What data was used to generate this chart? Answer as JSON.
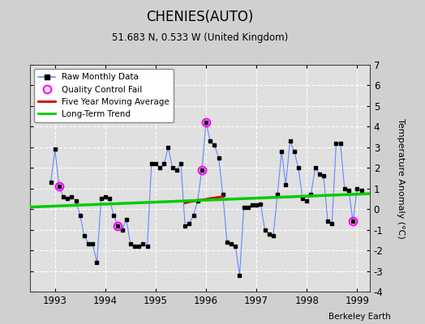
{
  "title": "CHENIES(AUTO)",
  "subtitle": "51.683 N, 0.533 W (United Kingdom)",
  "ylabel": "Temperature Anomaly (°C)",
  "credit": "Berkeley Earth",
  "ylim": [
    -4,
    7
  ],
  "xlim": [
    1992.5,
    1999.25
  ],
  "yticks": [
    -4,
    -3,
    -2,
    -1,
    0,
    1,
    2,
    3,
    4,
    5,
    6,
    7
  ],
  "xticks": [
    1993,
    1994,
    1995,
    1996,
    1997,
    1998,
    1999
  ],
  "bg_color": "#d0d0d0",
  "plot_bg_color": "#e0e0e0",
  "raw_line_color": "#6688ff",
  "raw_marker_color": "#000000",
  "qc_fail_color": "#ff00ff",
  "moving_avg_color": "#cc0000",
  "trend_color": "#00cc00",
  "raw_monthly_x": [
    1992.917,
    1993.0,
    1993.083,
    1993.167,
    1993.25,
    1993.333,
    1993.417,
    1993.5,
    1993.583,
    1993.667,
    1993.75,
    1993.833,
    1993.917,
    1994.0,
    1994.083,
    1994.167,
    1994.25,
    1994.333,
    1994.417,
    1994.5,
    1994.583,
    1994.667,
    1994.75,
    1994.833,
    1994.917,
    1995.0,
    1995.083,
    1995.167,
    1995.25,
    1995.333,
    1995.417,
    1995.5,
    1995.583,
    1995.667,
    1995.75,
    1995.833,
    1995.917,
    1996.0,
    1996.083,
    1996.167,
    1996.25,
    1996.333,
    1996.417,
    1996.5,
    1996.583,
    1996.667,
    1996.75,
    1996.833,
    1996.917,
    1997.0,
    1997.083,
    1997.167,
    1997.25,
    1997.333,
    1997.417,
    1997.5,
    1997.583,
    1997.667,
    1997.75,
    1997.833,
    1997.917,
    1998.0,
    1998.083,
    1998.167,
    1998.25,
    1998.333,
    1998.417,
    1998.5,
    1998.583,
    1998.667,
    1998.75,
    1998.833,
    1998.917,
    1999.0,
    1999.083
  ],
  "raw_monthly_y": [
    1.3,
    2.9,
    1.1,
    0.6,
    0.5,
    0.6,
    0.4,
    -0.3,
    -1.3,
    -1.7,
    -1.7,
    -2.6,
    0.5,
    0.6,
    0.5,
    -0.3,
    -0.8,
    -1.0,
    -0.5,
    -1.7,
    -1.8,
    -1.8,
    -1.7,
    -1.8,
    2.2,
    2.2,
    2.0,
    2.2,
    3.0,
    2.0,
    1.9,
    2.2,
    -0.8,
    -0.7,
    -0.3,
    0.4,
    1.9,
    4.2,
    3.3,
    3.1,
    2.5,
    0.7,
    -1.6,
    -1.7,
    -1.8,
    -3.2,
    0.1,
    0.1,
    0.2,
    0.2,
    0.25,
    -1.0,
    -1.2,
    -1.3,
    0.7,
    2.8,
    1.2,
    3.3,
    2.8,
    2.0,
    0.5,
    0.4,
    0.7,
    2.0,
    1.7,
    1.6,
    -0.6,
    -0.7,
    3.2,
    3.2,
    1.0,
    0.9,
    -0.6,
    1.0,
    0.9
  ],
  "qc_fail_x": [
    1993.083,
    1994.25,
    1995.917,
    1996.0,
    1998.917
  ],
  "qc_fail_y": [
    1.1,
    -0.8,
    1.9,
    4.2,
    -0.6
  ],
  "moving_avg_x": [
    1995.583,
    1995.667,
    1995.75,
    1995.833,
    1995.917,
    1996.0,
    1996.083,
    1996.167,
    1996.25,
    1996.333
  ],
  "moving_avg_y": [
    0.3,
    0.35,
    0.38,
    0.42,
    0.45,
    0.48,
    0.52,
    0.55,
    0.58,
    0.6
  ],
  "trend_x": [
    1992.5,
    1999.25
  ],
  "trend_y": [
    0.1,
    0.75
  ]
}
